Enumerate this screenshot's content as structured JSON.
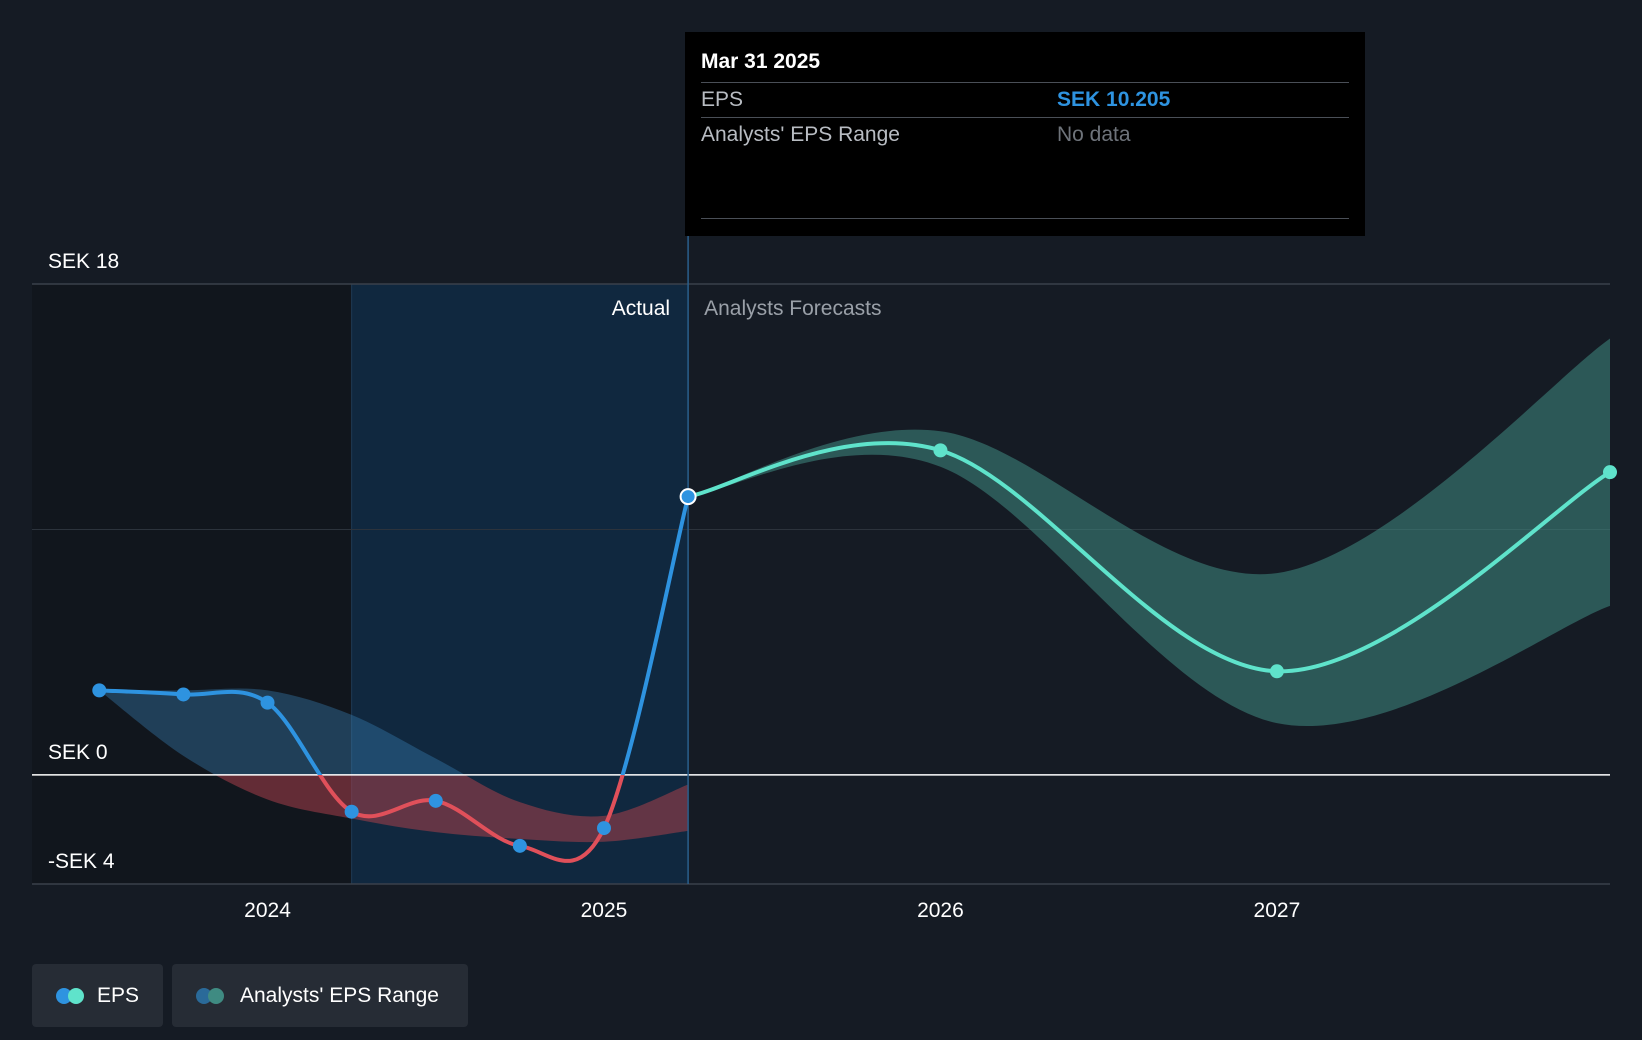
{
  "chart_data": {
    "type": "line",
    "y_unit_prefix": "SEK",
    "ylim": [
      -4,
      18
    ],
    "xlim": [
      2023.3,
      2027.99
    ],
    "y_axis_labels": [
      {
        "value": 18,
        "label": "SEK 18"
      },
      {
        "value": 0,
        "label": "SEK 0"
      },
      {
        "value": -4,
        "label": "-SEK 4"
      }
    ],
    "x_ticks": [
      {
        "value": 2024.0,
        "label": "2024"
      },
      {
        "value": 2025.0,
        "label": "2025"
      },
      {
        "value": 2026.0,
        "label": "2026"
      },
      {
        "value": 2027.0,
        "label": "2027"
      }
    ],
    "regions": {
      "highlight_start": 2024.25,
      "divider": 2025.25,
      "actual_label": "Actual",
      "forecast_label": "Analysts Forecasts"
    },
    "series": [
      {
        "name": "EPS (actual)",
        "points": [
          {
            "x": 2023.5,
            "y": 3.1
          },
          {
            "x": 2023.75,
            "y": 2.95
          },
          {
            "x": 2024.0,
            "y": 2.65
          },
          {
            "x": 2024.25,
            "y": -1.35
          },
          {
            "x": 2024.5,
            "y": -0.95
          },
          {
            "x": 2024.75,
            "y": -2.6
          },
          {
            "x": 2025.0,
            "y": -1.95
          },
          {
            "x": 2025.25,
            "y": 10.205
          }
        ]
      },
      {
        "name": "EPS (forecast)",
        "points": [
          {
            "x": 2025.25,
            "y": 10.205
          },
          {
            "x": 2026.0,
            "y": 11.9
          },
          {
            "x": 2027.0,
            "y": 3.8
          },
          {
            "x": 2027.99,
            "y": 11.1
          }
        ]
      }
    ],
    "actual_range_band": {
      "upper": [
        {
          "x": 2023.5,
          "y": 3.1
        },
        {
          "x": 2023.75,
          "y": 3.1
        },
        {
          "x": 2024.0,
          "y": 3.1
        },
        {
          "x": 2024.25,
          "y": 2.2
        },
        {
          "x": 2024.5,
          "y": 0.6
        },
        {
          "x": 2024.75,
          "y": -1.0
        },
        {
          "x": 2025.0,
          "y": -1.5
        },
        {
          "x": 2025.25,
          "y": -0.35
        }
      ],
      "lower": [
        {
          "x": 2023.5,
          "y": 3.1
        },
        {
          "x": 2023.75,
          "y": 0.7
        },
        {
          "x": 2024.0,
          "y": -0.9
        },
        {
          "x": 2024.25,
          "y": -1.6
        },
        {
          "x": 2024.5,
          "y": -2.1
        },
        {
          "x": 2024.75,
          "y": -2.35
        },
        {
          "x": 2025.0,
          "y": -2.45
        },
        {
          "x": 2025.25,
          "y": -2.05
        }
      ]
    },
    "forecast_range_band": {
      "upper": [
        {
          "x": 2025.25,
          "y": 10.205
        },
        {
          "x": 2026.0,
          "y": 12.6
        },
        {
          "x": 2027.0,
          "y": 7.4
        },
        {
          "x": 2027.99,
          "y": 16.0
        }
      ],
      "lower": [
        {
          "x": 2025.25,
          "y": 10.205
        },
        {
          "x": 2026.0,
          "y": 11.3
        },
        {
          "x": 2027.0,
          "y": 1.9
        },
        {
          "x": 2027.99,
          "y": 6.2
        }
      ]
    },
    "colors": {
      "eps_positive": "#2e93e0",
      "eps_negative": "#e0505a",
      "forecast": "#5fe3cb",
      "range_actual": "#3a84b8",
      "range_negative": "#a8404a",
      "range_forecast": "#3f8b82",
      "highlight": "#0f2a44"
    }
  },
  "tooltip": {
    "date": "Mar 31 2025",
    "rows": [
      {
        "key": "EPS",
        "value": "SEK 10.205"
      },
      {
        "key": "Analysts' EPS Range",
        "value": "No data"
      }
    ]
  },
  "legend": [
    {
      "label": "EPS",
      "colors": [
        "#2e93e0",
        "#5fe3cb"
      ]
    },
    {
      "label": "Analysts' EPS Range",
      "colors": [
        "#2a6a99",
        "#3f8b82"
      ]
    }
  ]
}
